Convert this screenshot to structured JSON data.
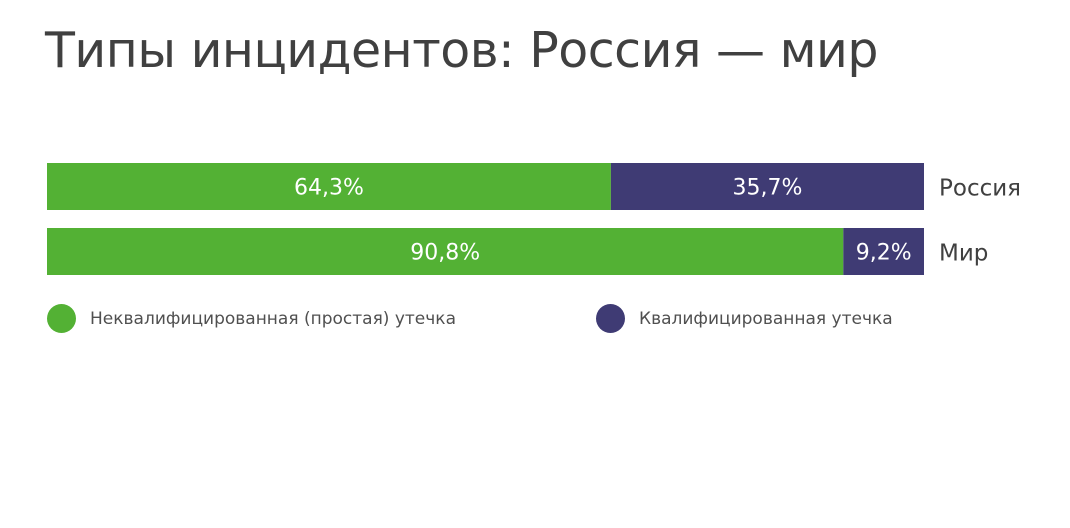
{
  "chart_data": {
    "type": "bar",
    "orientation": "horizontal",
    "stacked": true,
    "normalized_percent": true,
    "title": "Типы инцидентов: Россия — мир",
    "categories": [
      "Россия",
      "Мир"
    ],
    "series": [
      {
        "name": "Неквалифицированная (простая) утечка",
        "color": "#53b134",
        "values": [
          64.3,
          90.8
        ],
        "labels": [
          "64,3%",
          "90,8%"
        ]
      },
      {
        "name": "Квалифицированная утечка",
        "color": "#3f3b74",
        "values": [
          35.7,
          9.2
        ],
        "labels": [
          "35,7%",
          "9,2%"
        ]
      }
    ],
    "xlim": [
      0,
      100
    ],
    "grid": false,
    "legend_position": "bottom"
  }
}
